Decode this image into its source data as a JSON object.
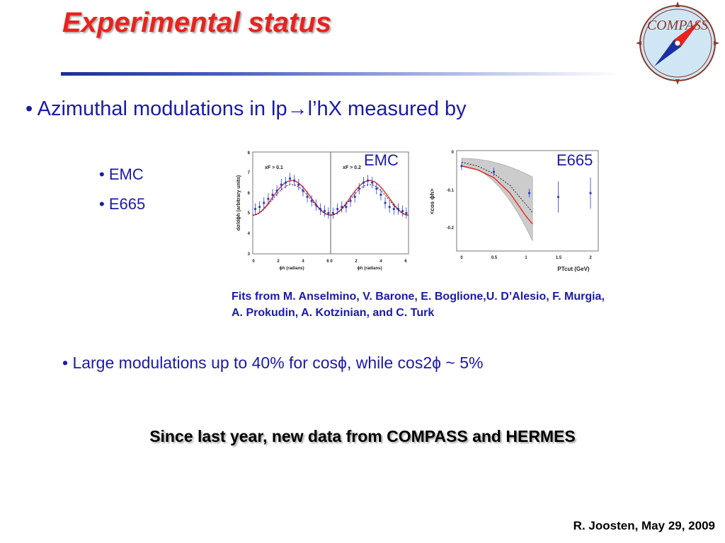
{
  "slide": {
    "title": "Experimental status",
    "logo_text": "COMPASS",
    "bullet_main": "• Azimuthal modulations in lp→l’hX measured by",
    "sub_bullets": [
      "• EMC",
      "• E665"
    ],
    "plot_labels": [
      "EMC",
      "E665"
    ],
    "fits_line1": "Fits from M. Anselmino, V. Barone, E. Boglione,U. D’Alesio, F. Murgia,",
    "fits_line2": "A. Prokudin, A. Kotzinian, and C. Turk",
    "large_modulations": "• Large modulations up to 40% for cosϕ, while cos2ϕ ~ 5%",
    "since_last_year": "Since last year, new data from COMPASS and HERMES",
    "footer": "R. Joosten, May 29, 2009"
  },
  "emc_plot": {
    "ylabel": "dσ/dϕh (arbitrary units)",
    "xlabel": "ϕh (radians)",
    "yticks": [
      "3",
      "4",
      "5",
      "6",
      "7",
      "8"
    ],
    "xticks_left": [
      "0",
      "2",
      "4",
      "6"
    ],
    "xticks_right": [
      "0",
      "2",
      "4",
      "6"
    ],
    "panel_labels": [
      "xF > 0.1",
      "xF > 0.2"
    ]
  },
  "e665_plot": {
    "ylabel": "<cos ϕh>",
    "xlabel": "PTcut (GeV)",
    "yticks": [
      "0",
      "-0.1",
      "-0.2"
    ],
    "xticks": [
      "0",
      "0.5",
      "1",
      "1.5",
      "2"
    ]
  },
  "chart_data": [
    {
      "type": "scatter",
      "title": "EMC",
      "xlabel": "ϕh (radians)",
      "ylabel": "dσ/dϕh (arbitrary units)",
      "ylim": [
        3,
        8
      ],
      "xlim": [
        0,
        6.28
      ],
      "panels": [
        {
          "label": "xF > 0.1",
          "x": [
            0.2,
            0.55,
            0.9,
            1.25,
            1.6,
            1.95,
            2.3,
            2.65,
            3.0,
            3.35,
            3.7,
            4.05,
            4.4,
            4.75,
            5.1,
            5.45,
            5.8,
            6.1
          ],
          "y": [
            5.2,
            5.3,
            5.5,
            5.7,
            5.9,
            6.1,
            6.4,
            6.5,
            6.7,
            6.6,
            6.4,
            6.1,
            5.8,
            5.6,
            5.4,
            5.2,
            5.1,
            5.0
          ]
        },
        {
          "label": "xF > 0.2",
          "x": [
            0.2,
            0.55,
            0.9,
            1.25,
            1.6,
            1.95,
            2.3,
            2.65,
            3.0,
            3.35,
            3.7,
            4.05,
            4.4,
            4.75,
            5.1,
            5.45,
            5.8,
            6.1
          ],
          "y": [
            5.0,
            5.2,
            5.3,
            5.3,
            5.6,
            5.8,
            6.2,
            6.5,
            6.6,
            6.5,
            6.2,
            5.9,
            5.5,
            5.3,
            5.2,
            5.2,
            5.1,
            5.0
          ]
        }
      ]
    },
    {
      "type": "line",
      "title": "E665",
      "xlabel": "PTcut (GeV)",
      "ylabel": "<cos ϕh>",
      "xlim": [
        0,
        2.1
      ],
      "ylim": [
        -0.25,
        0.01
      ],
      "points": {
        "x": [
          0,
          0.5,
          1.05,
          1.5,
          2.0
        ],
        "y": [
          -0.04,
          -0.055,
          -0.11,
          -0.12,
          -0.11
        ]
      },
      "series": [
        {
          "x": [
            0,
            0.25,
            0.5,
            0.75,
            1.0,
            1.1
          ],
          "y": [
            -0.04,
            -0.05,
            -0.07,
            -0.11,
            -0.17,
            -0.19
          ]
        },
        {
          "x": [
            0,
            0.25,
            0.5,
            0.75,
            1.0,
            1.1
          ],
          "y": [
            -0.03,
            -0.04,
            -0.06,
            -0.09,
            -0.14,
            -0.16
          ]
        }
      ]
    }
  ]
}
